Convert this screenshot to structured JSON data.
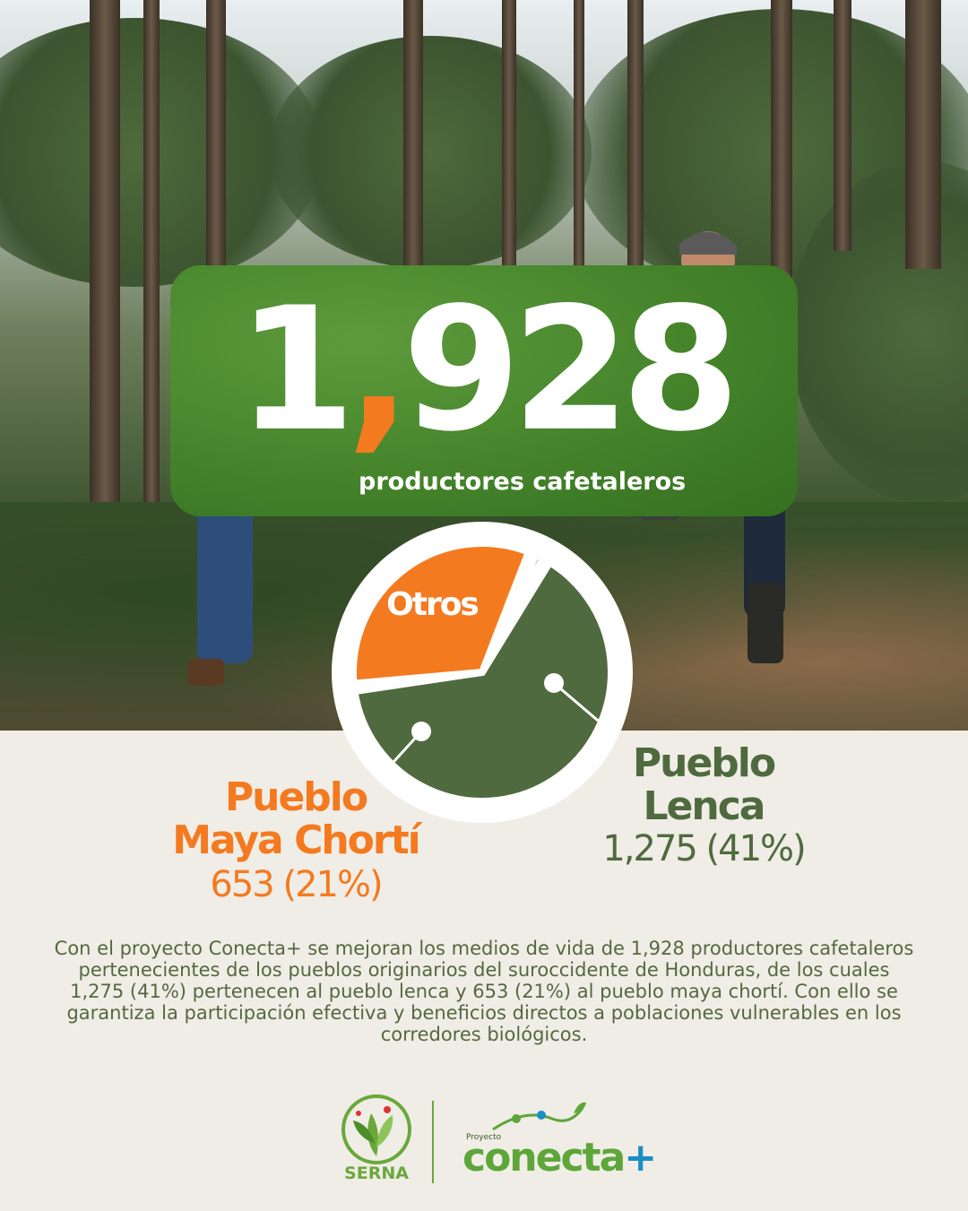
{
  "headline": {
    "number_main": "1",
    "number_comma": ",",
    "number_rest": "928",
    "subtitle": "productores cafetaleros"
  },
  "chart_data": {
    "type": "pie",
    "slices": [
      {
        "label": "Pueblo Lenca",
        "display": "1,275 (41%)",
        "value": 1275,
        "percent": 41,
        "color": "#4f6a3f"
      },
      {
        "label": "Pueblo Maya Chortí",
        "display": "653 (21%)",
        "value": 653,
        "percent": 21,
        "color": "#f47a20"
      },
      {
        "label": "Otros",
        "value": 38,
        "percent": 38,
        "color": "#9a6b46"
      }
    ]
  },
  "labels": {
    "otros": "Otros",
    "maya_line1": "Pueblo",
    "maya_line2": "Maya Chortí",
    "maya_value": "653 (21%)",
    "lenca_line1": "Pueblo",
    "lenca_line2": "Lenca",
    "lenca_value": "1,275 (41%)"
  },
  "description": "Con el proyecto Conecta+ se mejoran los medios de vida de 1,928 productores cafetaleros pertenecientes de los pueblos originarios del suroccidente de Honduras, de los cuales 1,275 (41%) pertenecen al pueblo lenca y 653 (21%) al pueblo maya chortí. Con ello se garantiza la participación efectiva y beneficios directos a poblaciones vulnerables en los corredores biológicos.",
  "logos": {
    "serna": "SERNA",
    "conecta_small": "Proyecto",
    "conecta_word": "conecta",
    "conecta_plus": "+"
  },
  "colors": {
    "orange": "#f47a20",
    "dark_green": "#4f6a3f",
    "brown": "#9a6b46",
    "card_green": "#4b8a2f",
    "paper": "#efede6"
  }
}
